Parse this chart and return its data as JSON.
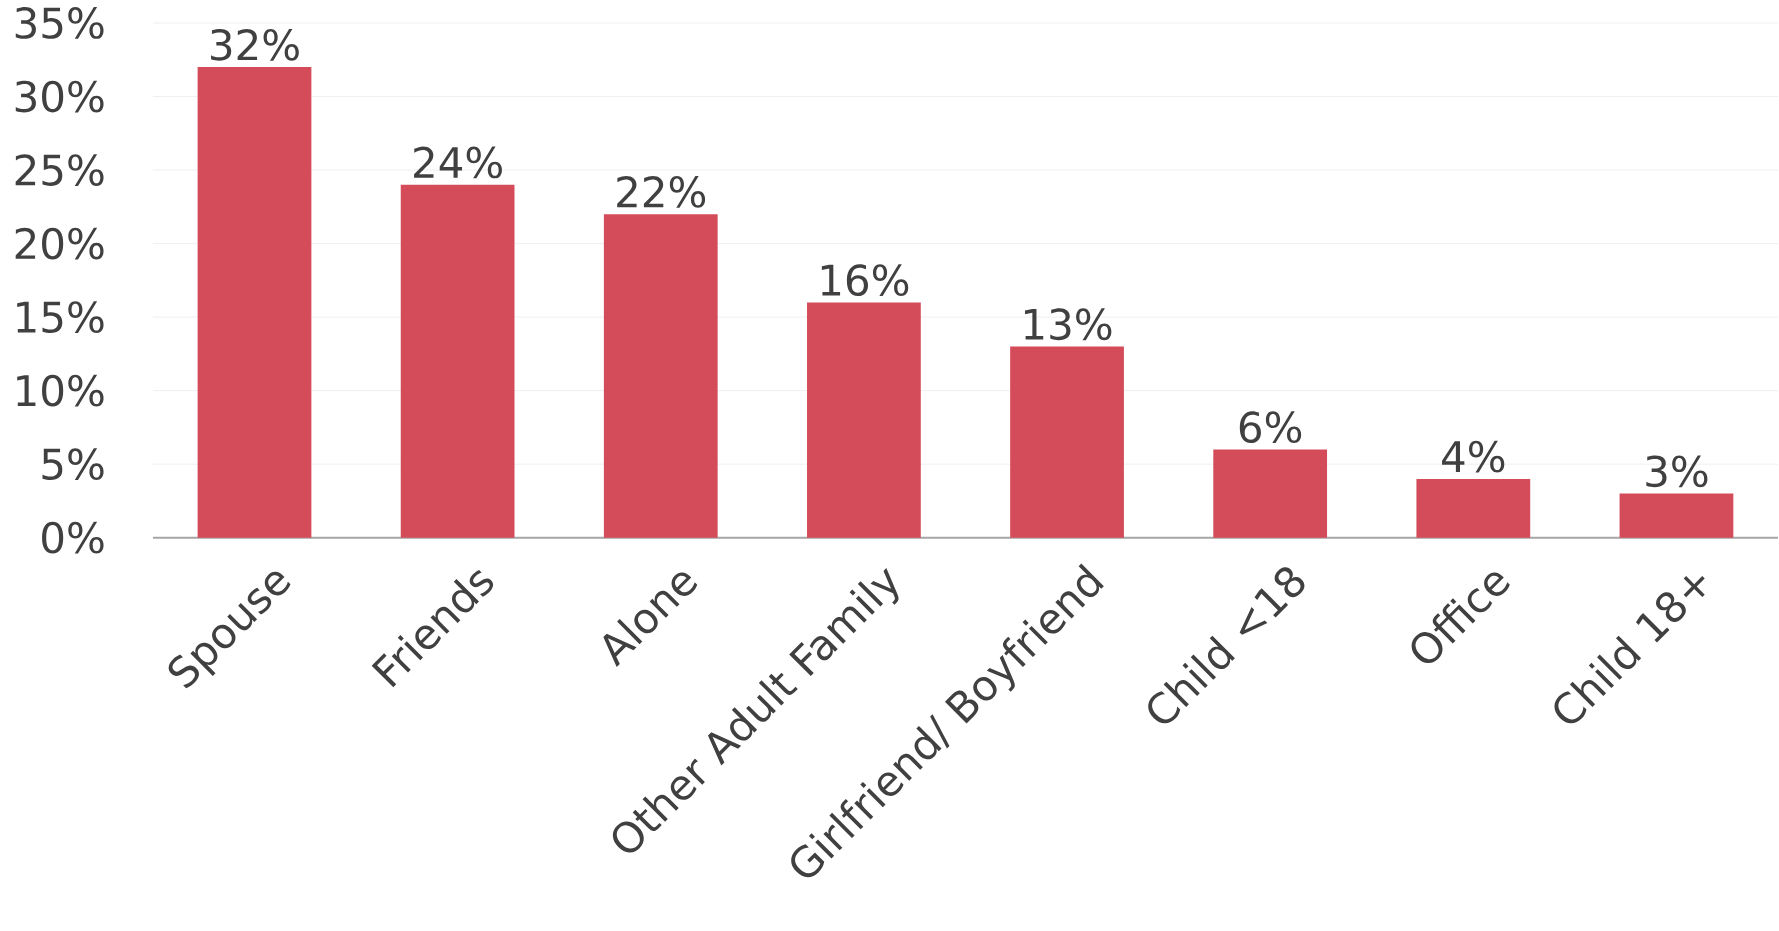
{
  "chart_data": {
    "type": "bar",
    "categories": [
      "Spouse",
      "Friends",
      "Alone",
      "Other Adult Family",
      "Girlfriend/ Boyfriend",
      "Child <18",
      "Office",
      "Child 18+"
    ],
    "values": [
      32,
      24,
      22,
      16,
      13,
      6,
      4,
      3
    ],
    "value_labels": [
      "32%",
      "24%",
      "22%",
      "16%",
      "13%",
      "6%",
      "4%",
      "3%"
    ],
    "color": "#d44b5a",
    "ylim": [
      0,
      35
    ],
    "yticks": [
      {
        "value": 0,
        "label": "0%"
      },
      {
        "value": 5,
        "label": "5%"
      },
      {
        "value": 10,
        "label": "10%"
      },
      {
        "value": 15,
        "label": "15%"
      },
      {
        "value": 20,
        "label": "20%"
      },
      {
        "value": 25,
        "label": "25%"
      },
      {
        "value": 30,
        "label": "30%"
      },
      {
        "value": 35,
        "label": "35%"
      }
    ],
    "grid": "y"
  }
}
